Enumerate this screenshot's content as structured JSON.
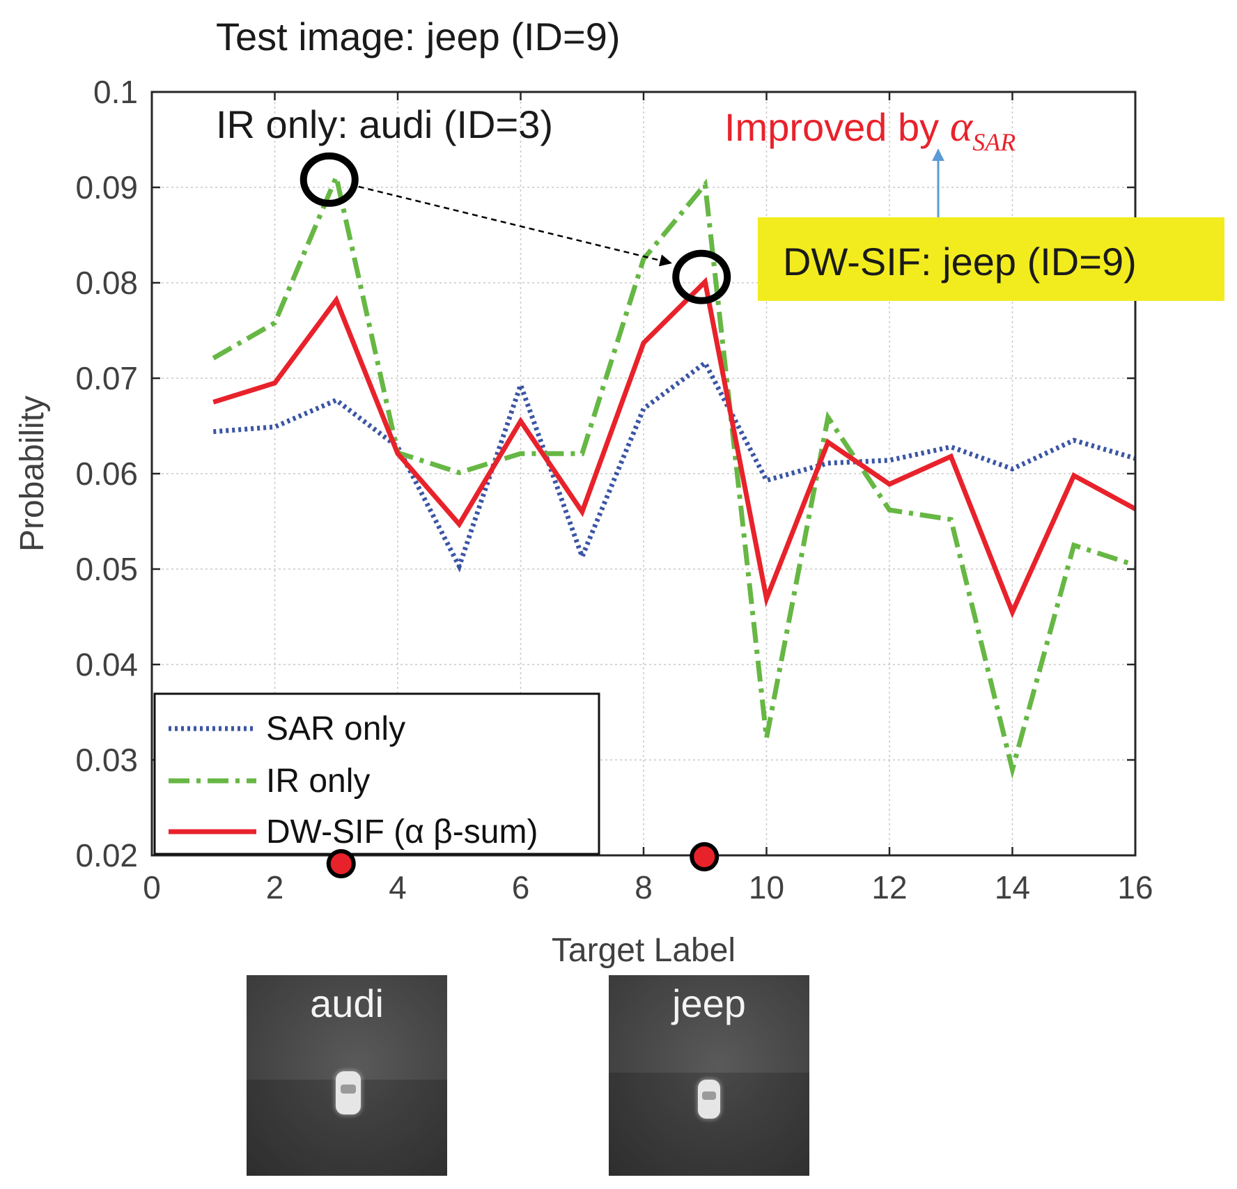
{
  "chart_data": {
    "type": "line",
    "title": "Test image: jeep (ID=9)",
    "xlabel": "Target Label",
    "ylabel": "Probability",
    "xlim": [
      0,
      16
    ],
    "ylim": [
      0.02,
      0.1
    ],
    "xticks": [
      "0",
      "2",
      "4",
      "6",
      "8",
      "10",
      "12",
      "14",
      "16"
    ],
    "yticks": [
      "0.02",
      "0.03",
      "0.04",
      "0.05",
      "0.06",
      "0.07",
      "0.08",
      "0.09",
      "0.1"
    ],
    "grid": true,
    "legend_position": "bottom-left",
    "x": [
      1,
      2,
      3,
      4,
      5,
      6,
      7,
      8,
      9,
      10,
      11,
      12,
      13,
      14,
      15,
      16
    ],
    "series": [
      {
        "name": "SAR only",
        "color": "#3a55a4",
        "style": "dotted",
        "values": [
          0.0644,
          0.0649,
          0.0677,
          0.0628,
          0.0503,
          0.0693,
          0.0513,
          0.0668,
          0.0716,
          0.0593,
          0.0611,
          0.0614,
          0.0628,
          0.0605,
          0.0635,
          0.0616
        ]
      },
      {
        "name": "IR only",
        "color": "#66b744",
        "style": "dashdot",
        "values": [
          0.0721,
          0.0758,
          0.0911,
          0.0622,
          0.0601,
          0.0621,
          0.0621,
          0.0825,
          0.0903,
          0.0323,
          0.0659,
          0.0562,
          0.0552,
          0.029,
          0.0525,
          0.0504
        ]
      },
      {
        "name": "DW-SIF (α β-sum)",
        "color": "#e8222b",
        "style": "solid",
        "values": [
          0.0675,
          0.0695,
          0.0782,
          0.0621,
          0.0547,
          0.0655,
          0.056,
          0.0737,
          0.0801,
          0.0469,
          0.0633,
          0.0589,
          0.0618,
          0.0455,
          0.0598,
          0.0563
        ]
      }
    ],
    "annotations": {
      "ir_only_result": "IR only: audi (ID=3)",
      "improved_prefix": "Improved by ",
      "alpha_symbol": "α",
      "alpha_subscript": "SAR",
      "dwsif_result": "DW-SIF: jeep (ID=9)",
      "circled_points": [
        {
          "series": "IR only",
          "x": 3
        },
        {
          "series": "DW-SIF (α β-sum)",
          "x": 9
        }
      ],
      "axis_markers_x": [
        3,
        9
      ],
      "marker_color": "#e8222b",
      "box_color": "#f2ec1f",
      "arrow_color": "#5b9bd5"
    }
  },
  "thumbnails": [
    {
      "label": "audi"
    },
    {
      "label": "jeep"
    }
  ]
}
